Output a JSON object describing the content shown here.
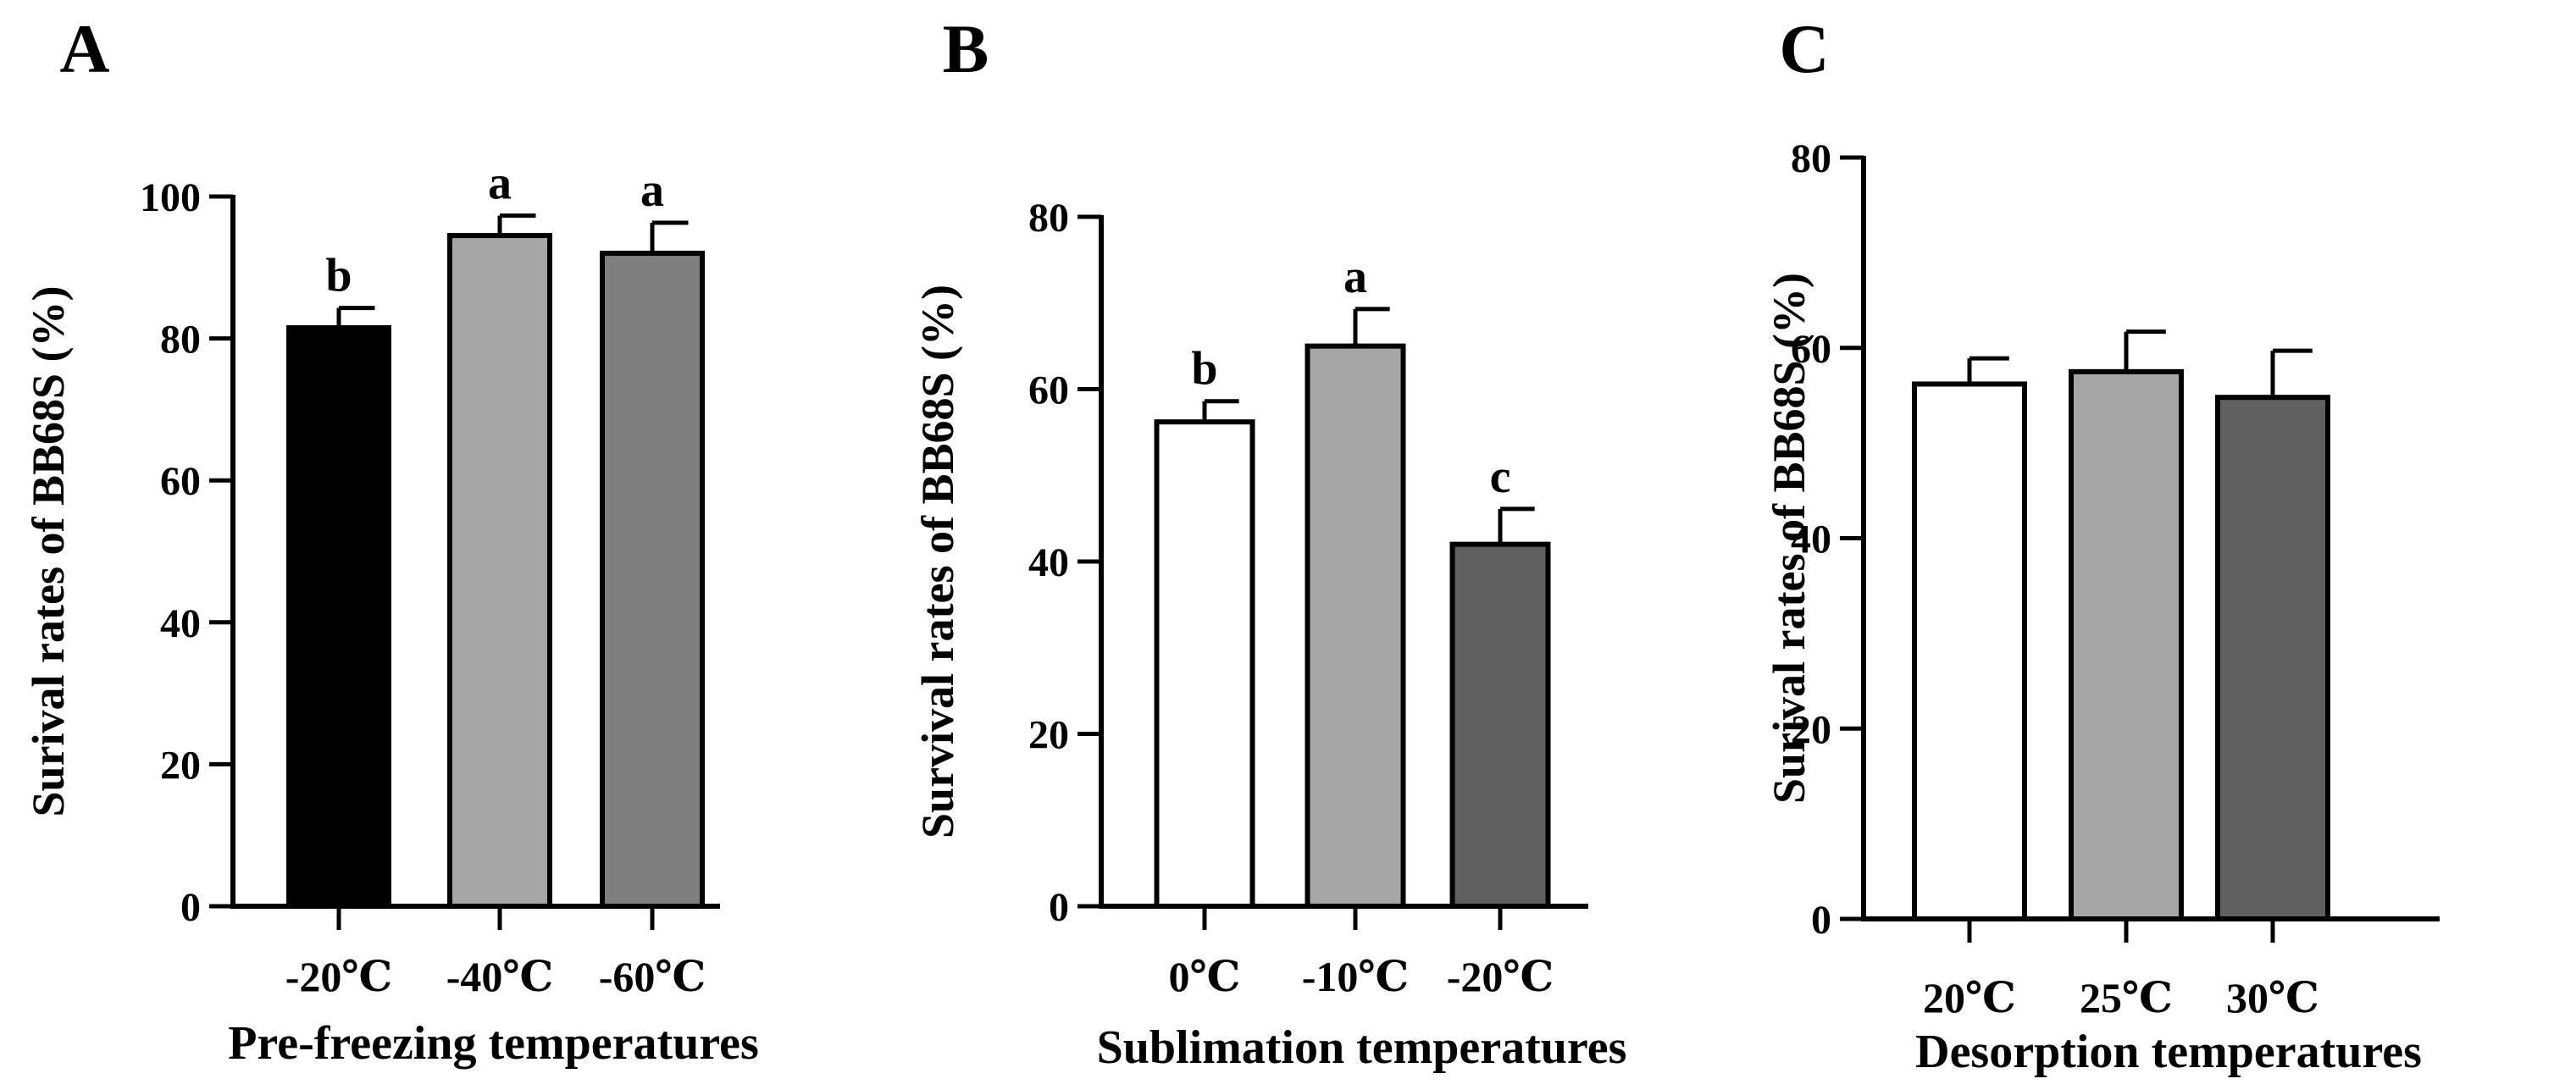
{
  "chart_data": [
    {
      "panel": "A",
      "type": "bar",
      "categories": [
        "-20℃",
        "-40℃",
        "-60℃"
      ],
      "values": [
        81.5,
        94.5,
        92.0
      ],
      "errors": [
        2.8,
        2.8,
        4.3
      ],
      "letters": [
        "b",
        "a",
        "a"
      ],
      "colors": [
        "#000000",
        "#a6a6a6",
        "#7f7f7f"
      ],
      "xlabel": "Pre-freezing temperatures",
      "ylabel": "Surival rates of  BB68S (%)",
      "ylim": [
        0,
        100
      ],
      "yticks": [
        0,
        20,
        40,
        60,
        80,
        100
      ]
    },
    {
      "panel": "B",
      "type": "bar",
      "categories": [
        "0℃",
        "-10℃",
        "-20℃"
      ],
      "values": [
        56.2,
        65.0,
        42.0
      ],
      "errors": [
        2.4,
        4.3,
        4.1
      ],
      "letters": [
        "b",
        "a",
        "c"
      ],
      "colors": [
        "#ffffff",
        "#a6a6a6",
        "#606060"
      ],
      "xlabel": "Sublimation temperatures",
      "ylabel": "Survival rates of BB68S (%)",
      "ylim": [
        0,
        80
      ],
      "yticks": [
        0,
        20,
        40,
        60,
        80
      ]
    },
    {
      "panel": "C",
      "type": "bar",
      "categories": [
        "20℃",
        "25℃",
        "30℃"
      ],
      "values": [
        56.2,
        57.5,
        54.8
      ],
      "errors": [
        2.7,
        4.2,
        4.9
      ],
      "letters": [
        "",
        "",
        ""
      ],
      "colors": [
        "#ffffff",
        "#a6a6a6",
        "#606060"
      ],
      "xlabel": "Desorption temperatures",
      "ylabel": "Surival rates of  BB68S (%)",
      "ylim": [
        0,
        80
      ],
      "yticks": [
        0,
        20,
        40,
        60,
        80
      ]
    }
  ]
}
